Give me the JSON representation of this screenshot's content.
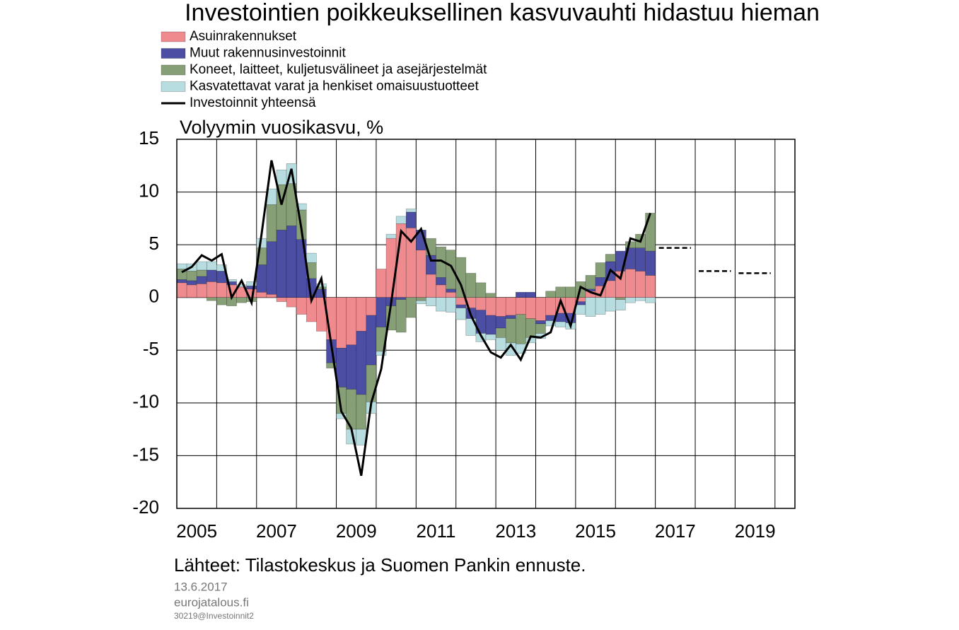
{
  "chart_data": {
    "type": "stacked-bar-line",
    "title": "Investointien poikkeuksellinen kasvuvauhti hidastuu hieman",
    "y_label": "Volyymin vuosikasvu, %",
    "source": "Lähteet: Tilastokeskus ja Suomen Pankin ennuste.",
    "date": "13.6.2017",
    "site": "eurojatalous.fi",
    "code": "30219@Investoinnit2",
    "xlim": [
      2005,
      2020.5
    ],
    "xticks": [
      2005,
      2007,
      2009,
      2011,
      2013,
      2015,
      2017,
      2019
    ],
    "ylim": [
      -20,
      15
    ],
    "yticks": [
      15,
      10,
      5,
      0,
      -5,
      -10,
      -15,
      -20
    ],
    "grid": true,
    "series": [
      {
        "name": "Asuinrakennukset",
        "color": "#ef8a8f",
        "values": [
          1.4,
          1.2,
          1.3,
          1.5,
          1.4,
          1.2,
          1.0,
          0.8,
          0.5,
          0.3,
          -0.4,
          -0.9,
          -1.6,
          -2.3,
          -3.2,
          -4.0,
          -4.8,
          -4.5,
          -3.2,
          -1.7,
          2.7,
          5.6,
          7.0,
          6.6,
          4.5,
          2.2,
          1.2,
          0.5,
          -0.7,
          -1.0,
          -1.2,
          -1.7,
          -1.8,
          -1.7,
          -1.6,
          -2.0,
          -2.2,
          -1.7,
          -1.5,
          -1.5,
          -0.4,
          0.6,
          1.1,
          1.6,
          2.5,
          2.7,
          2.5,
          2.1
        ]
      },
      {
        "name": "Muut rakennusinvestoinnit",
        "color": "#4b4ea3",
        "values": [
          0.3,
          0.4,
          0.7,
          1.1,
          1.1,
          0.3,
          0,
          0.3,
          2.6,
          5.0,
          6.4,
          6.8,
          5.5,
          1.8,
          0.8,
          -2.2,
          -3.7,
          -4.2,
          -6.0,
          -4.7,
          -2.8,
          -0.8,
          -0.2,
          1.5,
          1.9,
          1.8,
          0.7,
          0.3,
          -0.3,
          -1.0,
          -2.2,
          -1.8,
          -1.1,
          -0.3,
          0.5,
          0.5,
          -0.3,
          -0.5,
          -0.8,
          -0.9,
          -0.3,
          0.2,
          0.8,
          1.8,
          1.9,
          2.0,
          2.2,
          2.3
        ]
      },
      {
        "name": "Koneet, laitteet, kuljetusvälineet ja asejärjestelmät",
        "color": "#879f77",
        "values": [
          1.0,
          0.9,
          0.6,
          -0.3,
          -0.7,
          -0.8,
          -0.5,
          -0.4,
          1.6,
          3.5,
          4.3,
          4.0,
          2.8,
          1.5,
          0.2,
          -0.5,
          -2.5,
          -3.8,
          -3.3,
          -3.5,
          -2.3,
          -2.3,
          -3.1,
          -1.9,
          -0.3,
          1.6,
          2.9,
          3.7,
          3.8,
          2.3,
          1.4,
          0.4,
          -0.9,
          -2.3,
          -2.8,
          -1.8,
          -0.9,
          0.6,
          1.0,
          1.0,
          1.5,
          1.3,
          1.4,
          0.7,
          -0.2,
          0.6,
          1.3,
          3.6
        ]
      },
      {
        "name": "Kasvatettavat varat ja henkiset omaisuustuotteet",
        "color": "#b7dde0",
        "values": [
          0.5,
          0.7,
          0.8,
          0.8,
          0.6,
          0.2,
          0.2,
          0.4,
          0.9,
          1.5,
          1.4,
          1.9,
          0.6,
          0.9,
          0.3,
          0,
          -0.5,
          -1.4,
          -1.5,
          -1.1,
          -0.4,
          0.4,
          0.7,
          0.3,
          -0.3,
          -0.8,
          -1.3,
          -1.4,
          -1.1,
          -1.6,
          -0.8,
          -0.5,
          -1.2,
          -1.2,
          -0.9,
          -0.5,
          -0.5,
          -0.5,
          -0.5,
          -0.6,
          -0.9,
          -1.8,
          -1.6,
          -1.3,
          -1.0,
          -0.5,
          -0.3,
          -0.5
        ]
      },
      {
        "name": "Investoinnit yhteensä",
        "color": "#000000",
        "kind": "line",
        "values": [
          2.4,
          2.9,
          4.0,
          3.5,
          4.1,
          0.0,
          1.6,
          -0.5,
          6.0,
          13.0,
          8.8,
          12.2,
          6.5,
          -0.3,
          1.8,
          -4.5,
          -10.8,
          -12.4,
          -16.9,
          -10.0,
          -6.8,
          -0.5,
          6.3,
          5.3,
          6.5,
          3.5,
          3.5,
          3.0,
          1.2,
          -1.7,
          -3.6,
          -5.2,
          -5.7,
          -4.5,
          -5.9,
          -3.7,
          -3.8,
          -3.3,
          -0.3,
          -2.7,
          1.0,
          0.5,
          0.2,
          2.6,
          1.8,
          5.6,
          5.3,
          8.0
        ]
      }
    ],
    "forecast": {
      "x": [
        2017,
        2018,
        2019
      ],
      "values": [
        4.7,
        2.5,
        2.3
      ],
      "color": "#000000"
    }
  }
}
